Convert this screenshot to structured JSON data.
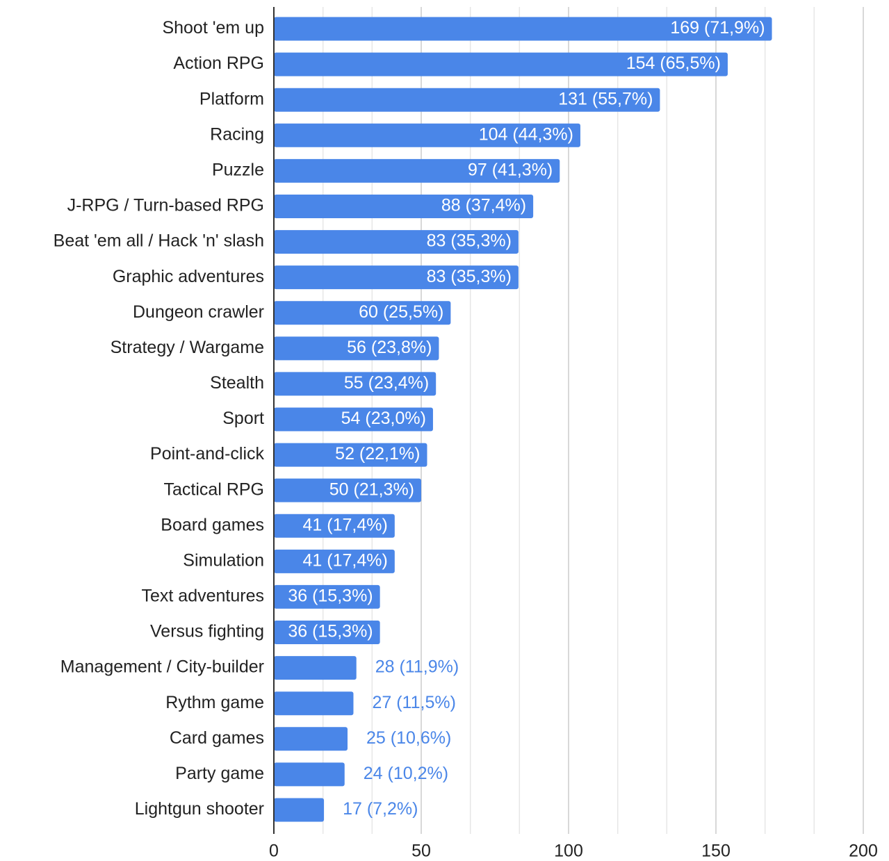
{
  "chart_data": {
    "type": "bar",
    "orientation": "horizontal",
    "categories": [
      "Shoot 'em up",
      "Action RPG",
      "Platform",
      "Racing",
      "Puzzle",
      "J-RPG / Turn-based RPG",
      "Beat 'em all / Hack 'n' slash",
      "Graphic adventures",
      "Dungeon crawler",
      "Strategy / Wargame",
      "Stealth",
      "Sport",
      "Point-and-click",
      "Tactical RPG",
      "Board games",
      "Simulation",
      "Text adventures",
      "Versus fighting",
      "Management / City-builder",
      "Rythm game",
      "Card games",
      "Party game",
      "Lightgun shooter"
    ],
    "values": [
      169,
      154,
      131,
      104,
      97,
      88,
      83,
      83,
      60,
      56,
      55,
      54,
      52,
      50,
      41,
      41,
      36,
      36,
      28,
      27,
      25,
      24,
      17
    ],
    "value_labels": [
      "169 (71,9%)",
      "154 (65,5%)",
      "131 (55,7%)",
      "104 (44,3%)",
      "97 (41,3%)",
      "88 (37,4%)",
      "83 (35,3%)",
      "83 (35,3%)",
      "60 (25,5%)",
      "56 (23,8%)",
      "55 (23,4%)",
      "54 (23,0%)",
      "52 (22,1%)",
      "50 (21,3%)",
      "41 (17,4%)",
      "41 (17,4%)",
      "36 (15,3%)",
      "36 (15,3%)",
      "28 (11,9%)",
      "27 (11,5%)",
      "25 (10,6%)",
      "24 (10,2%)",
      "17 (7,2%)"
    ],
    "color": "#4a86e8",
    "xlim": [
      0,
      200
    ],
    "xticks": [
      0,
      50,
      100,
      150,
      200
    ],
    "minor_xticks": [
      16.67,
      33.33,
      66.67,
      83.33,
      116.67,
      133.33,
      166.67,
      183.33
    ],
    "grid": true
  }
}
